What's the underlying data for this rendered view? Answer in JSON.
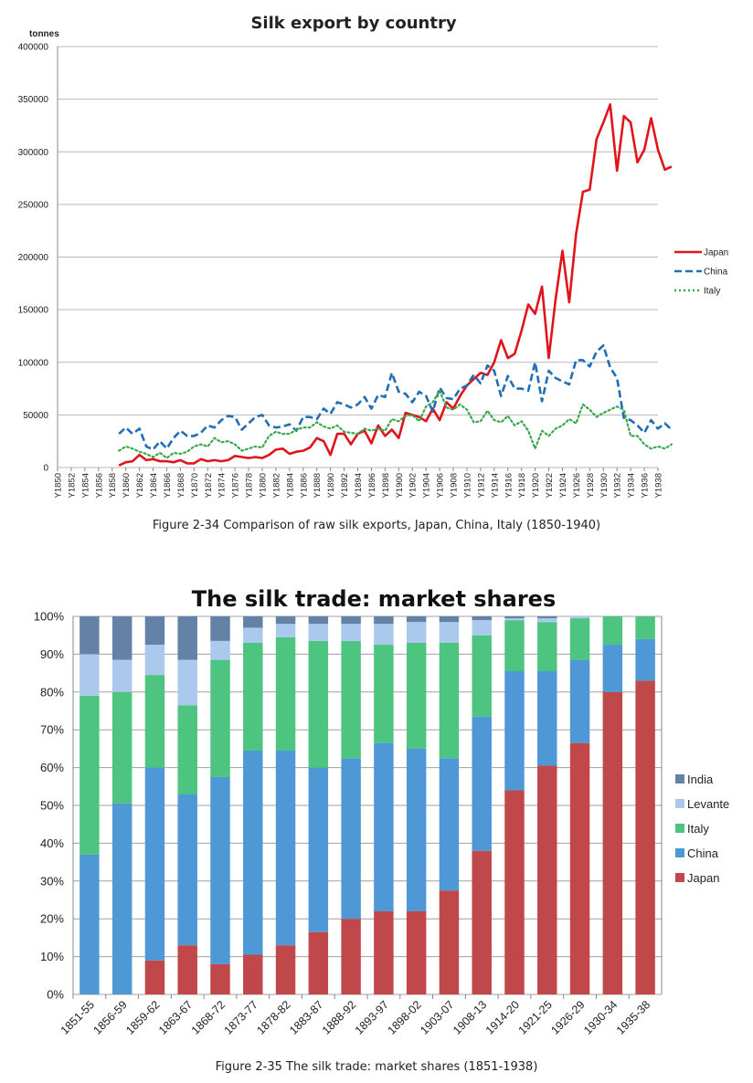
{
  "chart_data": [
    {
      "type": "line",
      "title": "Silk export by country",
      "ylabel": "tonnes",
      "ylim": [
        0,
        400000
      ],
      "yticks": [
        "0",
        "50000",
        "100000",
        "150000",
        "200000",
        "250000",
        "300000",
        "350000",
        "400000"
      ],
      "x_start": 1850,
      "x_end": 1938,
      "x_tick_prefix": "Y",
      "legend_position": "right",
      "caption": "Figure 2-34 Comparison of raw silk exports, Japan, China, Italy (1850-1940)",
      "series": [
        {
          "name": "Japan",
          "color": "#e0141b",
          "style": "solid",
          "start": 1859,
          "values": [
            2000,
            5000,
            6000,
            12000,
            7000,
            8000,
            6000,
            6000,
            5000,
            7000,
            4000,
            4000,
            8000,
            6000,
            7000,
            6000,
            7000,
            11000,
            10000,
            9000,
            10000,
            9000,
            12000,
            17000,
            18000,
            13000,
            15000,
            16000,
            19000,
            28000,
            25000,
            12000,
            32000,
            32000,
            22000,
            32000,
            35000,
            23000,
            40000,
            30000,
            36000,
            28000,
            52000,
            50000,
            48000,
            44000,
            56000,
            45000,
            62000,
            56000,
            68000,
            78000,
            84000,
            90000,
            88000,
            100000,
            121000,
            104000,
            108000,
            130000,
            155000,
            146000,
            172000,
            104000,
            160000,
            206000,
            157000,
            222000,
            262000,
            264000,
            312000,
            328000,
            345000,
            282000,
            334000,
            328000,
            290000,
            302000,
            332000,
            302000,
            283000,
            286000
          ]
        },
        {
          "name": "China",
          "color": "#1f6eb8",
          "style": "dashed",
          "start": 1859,
          "values": [
            32000,
            38000,
            32000,
            37000,
            20000,
            17000,
            25000,
            18000,
            28000,
            35000,
            30000,
            30000,
            33000,
            40000,
            38000,
            45000,
            49000,
            48000,
            36000,
            42000,
            48000,
            50000,
            40000,
            38000,
            39000,
            41000,
            35000,
            48000,
            48000,
            46000,
            56000,
            51000,
            62000,
            60000,
            57000,
            60000,
            67000,
            56000,
            69000,
            67000,
            90000,
            72000,
            70000,
            62000,
            72000,
            68000,
            53000,
            76000,
            66000,
            65000,
            75000,
            78000,
            88000,
            80000,
            97000,
            92000,
            68000,
            87000,
            75000,
            75000,
            73000,
            100000,
            63000,
            92000,
            85000,
            82000,
            79000,
            102000,
            102000,
            96000,
            110000,
            116000,
            95000,
            85000,
            47000,
            45000,
            40000,
            33000,
            45000,
            37000,
            42000,
            36000
          ]
        },
        {
          "name": "Italy",
          "color": "#3aa84d",
          "style": "dotted",
          "start": 1859,
          "values": [
            16000,
            20000,
            18000,
            15000,
            13000,
            10000,
            14000,
            9000,
            14000,
            13000,
            15000,
            20000,
            22000,
            20000,
            28000,
            24000,
            25000,
            22000,
            16000,
            18000,
            20000,
            19000,
            30000,
            34000,
            32000,
            32000,
            36000,
            38000,
            38000,
            43000,
            39000,
            37000,
            40000,
            34000,
            33000,
            32000,
            37000,
            35000,
            37000,
            35000,
            46000,
            44000,
            49000,
            50000,
            44000,
            58000,
            62000,
            73000,
            57000,
            55000,
            60000,
            55000,
            43000,
            44000,
            54000,
            45000,
            43000,
            49000,
            40000,
            44000,
            35000,
            18000,
            35000,
            30000,
            37000,
            40000,
            46000,
            42000,
            60000,
            55000,
            48000,
            52000,
            55000,
            58000,
            55000,
            30000,
            30000,
            22000,
            18000,
            20000,
            18000,
            22000
          ]
        }
      ]
    },
    {
      "type": "bar",
      "stacked": true,
      "title": "The silk trade: market shares",
      "ylim": [
        0,
        100
      ],
      "yticks": [
        "0%",
        "10%",
        "20%",
        "30%",
        "40%",
        "50%",
        "60%",
        "70%",
        "80%",
        "90%",
        "100%"
      ],
      "categories": [
        "1851-55",
        "1856-59",
        "1859-62",
        "1863-67",
        "1868-72",
        "1873-77",
        "1878-82",
        "1883-87",
        "1888-92",
        "1893-97",
        "1898-02",
        "1903-07",
        "1908-13",
        "1914-20",
        "1921-25",
        "1926-29",
        "1930-34",
        "1935-38"
      ],
      "legend_position": "right",
      "caption": "Figure 2-35 The silk trade: market shares (1851-1938)",
      "series": [
        {
          "name": "Japan",
          "color": "#c0484a",
          "values": [
            0,
            0,
            9,
            13,
            8,
            10.5,
            13,
            16.5,
            20,
            22,
            22,
            27.5,
            38,
            54,
            60.5,
            66.5,
            80,
            83
          ]
        },
        {
          "name": "China",
          "color": "#4f98d6",
          "values": [
            37,
            50.5,
            51,
            40,
            49.5,
            54,
            51.5,
            43.5,
            42.5,
            44.5,
            43,
            35,
            35.5,
            31.5,
            25,
            22,
            12.5,
            11
          ]
        },
        {
          "name": "Italy",
          "color": "#4dc480",
          "values": [
            42,
            29.5,
            24.5,
            23.5,
            31,
            28.5,
            30,
            33.5,
            31,
            26,
            28,
            30.5,
            21.5,
            13.5,
            13,
            11,
            7.5,
            6
          ]
        },
        {
          "name": "Levante",
          "color": "#abc9ec",
          "values": [
            11,
            8.5,
            8,
            12,
            5,
            4,
            3.5,
            4.5,
            4.5,
            5.5,
            5.5,
            5.5,
            4,
            0.5,
            1,
            0.5,
            0,
            0
          ]
        },
        {
          "name": "India",
          "color": "#6482a6",
          "values": [
            10,
            11.5,
            7.5,
            11.5,
            6.5,
            3,
            2,
            2,
            2,
            2,
            1.5,
            1.5,
            1,
            0.5,
            0.5,
            0,
            0,
            0
          ]
        }
      ],
      "legend_order": [
        "India",
        "Levante",
        "Italy",
        "China",
        "Japan"
      ]
    }
  ]
}
